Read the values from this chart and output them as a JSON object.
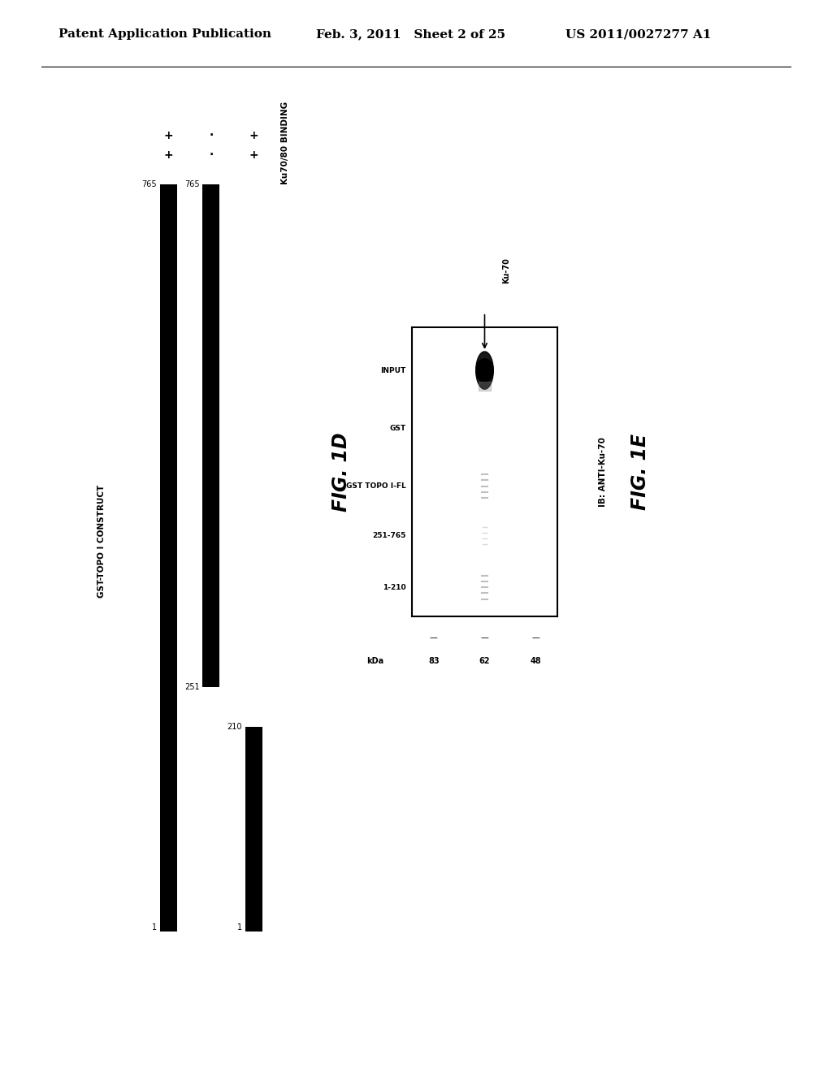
{
  "header_left": "Patent Application Publication",
  "header_mid": "Feb. 3, 2011   Sheet 2 of 25",
  "header_right": "US 2011/0027277 A1",
  "fig1d_label": "FIG. 1D",
  "fig1e_label": "FIG. 1E",
  "ylabel_construct": "GST-TOPO I CONSTRUCT",
  "ylabel_binding": "Ku70/80 BINDING",
  "bar_color": "#000000",
  "bg_color": "#ffffff",
  "blot_lane_labels": [
    "INPUT",
    "GST",
    "GST TOPO I-FL",
    "251-765",
    "1-210"
  ],
  "kda_labels": [
    "kDa",
    "83",
    "62",
    "48"
  ],
  "ib_label": "IB: ANTI-Ku-70",
  "ku70_label": "Ku-70",
  "binding_row1": [
    "+",
    "·",
    "+"
  ],
  "binding_row2": [
    "+",
    "·",
    "+"
  ]
}
